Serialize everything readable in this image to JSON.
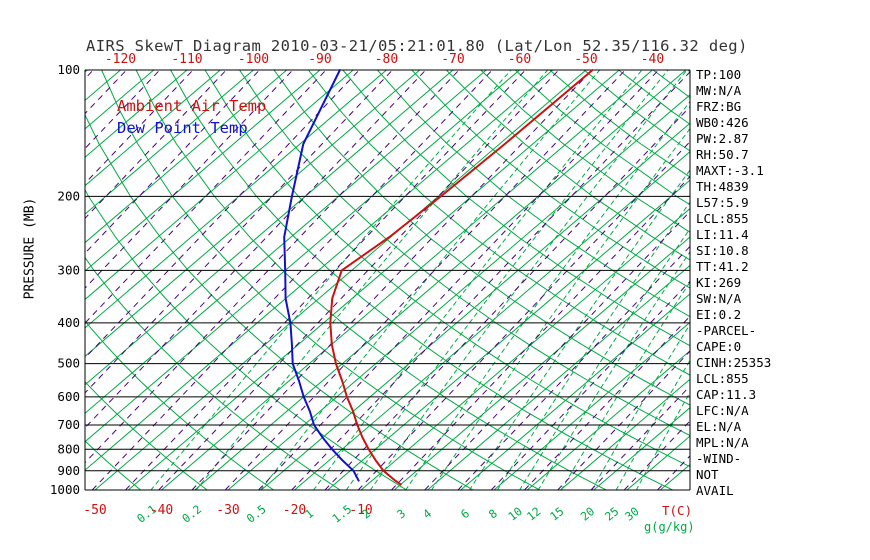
{
  "title": "AIRS SkewT Diagram 2010-03-21/05:21:01.80 (Lat/Lon 52.35/116.32 deg)",
  "legend": {
    "temp": "Ambient Air Temp",
    "dewpoint": "Dew Point Temp"
  },
  "axes": {
    "pressure_label": "PRESSURE (MB)",
    "pressure_ticks": [
      100,
      200,
      300,
      400,
      500,
      600,
      700,
      800,
      900,
      1000
    ],
    "top_temp_ticks": [
      -120,
      -110,
      -100,
      -90,
      -80,
      -70,
      -60,
      -50,
      -40
    ],
    "bottom_temp_ticks": [
      -50,
      -40,
      -30,
      -20,
      -10
    ],
    "temp_unit": "T(C)",
    "mixing_unit": "g(g/kg)"
  },
  "stats": [
    "TP:100",
    "MW:N/A",
    "FRZ:BG",
    "WB0:426",
    "PW:2.87",
    "RH:50.7",
    "MAXT:-3.1",
    "TH:4839",
    "L57:5.9",
    "LCL:855",
    "LI:11.4",
    "SI:10.8",
    "TT:41.2",
    "KI:269",
    "SW:N/A",
    "EI:0.2",
    "-PARCEL-",
    "CAPE:0",
    "CINH:25353",
    "LCL:855",
    "CAP:11.3",
    "LFC:N/A",
    "EL:N/A",
    "MPL:N/A",
    "-WIND-",
    "NOT",
    "AVAIL"
  ],
  "colors": {
    "red": "#CC1111",
    "blue": "#1111CC",
    "green": "#00AA44",
    "purple": "#4B0082",
    "black": "#000000"
  },
  "chart_data": {
    "type": "line",
    "title": "AIRS SkewT Diagram 2010-03-21/05:21:01.80 (Lat/Lon 52.35/116.32 deg)",
    "x_axis": {
      "label": "T(C)",
      "top_ticks_at_100mb": [
        -120,
        -110,
        -100,
        -90,
        -80,
        -70,
        -60,
        -50,
        -40
      ],
      "bottom_ticks_at_1000mb": [
        -50,
        -40,
        -30,
        -20,
        -10
      ]
    },
    "y_axis": {
      "label": "PRESSURE (MB)",
      "scale": "log",
      "range": [
        100,
        1000
      ],
      "ticks": [
        100,
        200,
        300,
        400,
        500,
        600,
        700,
        800,
        900,
        1000
      ]
    },
    "mixing_ratio_lines": [
      0.1,
      0.2,
      0.5,
      1,
      1.5,
      2,
      3,
      4,
      6,
      8,
      10,
      12,
      15,
      20,
      25,
      30
    ],
    "grid": {
      "isotherm_min": -125,
      "isotherm_max": 40,
      "isotherm_step": 5,
      "dry_adiabat_theta_min": 230,
      "dry_adiabat_theta_max": 460,
      "dry_adiabat_theta_step": 10
    },
    "series": [
      {
        "name": "Ambient Air Temp",
        "color": "#CC1111",
        "points_pressure_temp": [
          [
            970,
            -5
          ],
          [
            950,
            -6.5
          ],
          [
            900,
            -10
          ],
          [
            850,
            -13
          ],
          [
            800,
            -16
          ],
          [
            750,
            -19
          ],
          [
            700,
            -22
          ],
          [
            650,
            -25
          ],
          [
            600,
            -28.5
          ],
          [
            550,
            -32
          ],
          [
            500,
            -36
          ],
          [
            450,
            -40
          ],
          [
            400,
            -44
          ],
          [
            350,
            -48
          ],
          [
            300,
            -51.5
          ],
          [
            250,
            -50.2
          ],
          [
            200,
            -49.6
          ],
          [
            150,
            -49.2
          ],
          [
            100,
            -49
          ]
        ]
      },
      {
        "name": "Dew Point Temp",
        "color": "#1111CC",
        "points_pressure_temp": [
          [
            950,
            -12
          ],
          [
            900,
            -14.5
          ],
          [
            850,
            -18
          ],
          [
            800,
            -21.5
          ],
          [
            750,
            -25
          ],
          [
            700,
            -28.5
          ],
          [
            650,
            -31.5
          ],
          [
            600,
            -35
          ],
          [
            550,
            -38.5
          ],
          [
            500,
            -42.5
          ],
          [
            450,
            -46
          ],
          [
            400,
            -50
          ],
          [
            350,
            -55
          ],
          [
            300,
            -60
          ],
          [
            250,
            -66
          ],
          [
            200,
            -72
          ],
          [
            150,
            -79.5
          ],
          [
            100,
            -87
          ]
        ]
      }
    ]
  }
}
